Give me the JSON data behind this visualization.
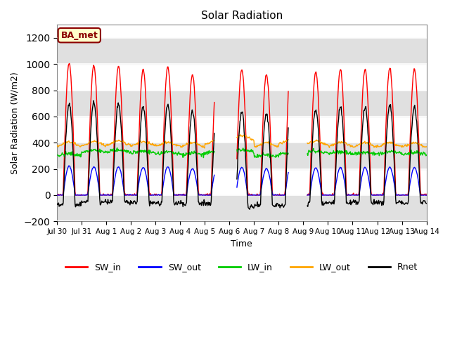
{
  "title": "Solar Radiation",
  "xlabel": "Time",
  "ylabel": "Solar Radiation (W/m2)",
  "ylim": [
    -200,
    1300
  ],
  "yticks": [
    -200,
    0,
    200,
    400,
    600,
    800,
    1000,
    1200
  ],
  "annotation_label": "BA_met",
  "legend_entries": [
    "SW_in",
    "SW_out",
    "LW_in",
    "LW_out",
    "Rnet"
  ],
  "line_colors": {
    "SW_in": "#FF0000",
    "SW_out": "#0000FF",
    "LW_in": "#00CC00",
    "LW_out": "#FFA500",
    "Rnet": "#000000"
  },
  "n_days": 15,
  "bg_stripe_color": "#DCDCDC",
  "bg_white": "#FFFFFF",
  "plot_bg": "#F0F0F0"
}
